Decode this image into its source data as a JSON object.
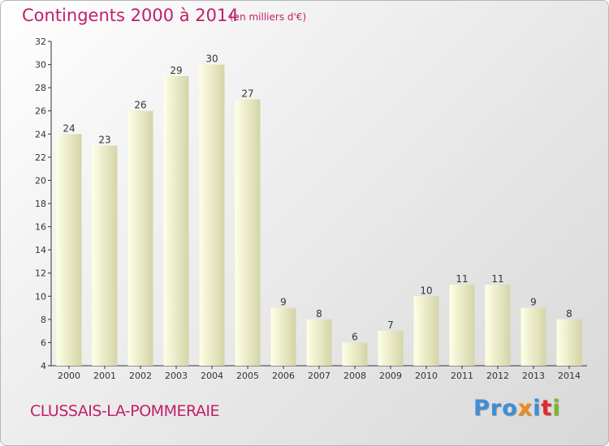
{
  "header": {
    "title": "Contingents 2000 à 2014",
    "unit": "(en milliers d'€)"
  },
  "footer": {
    "commune": "CLUSSAIS-LA-POMMERAIE",
    "logo_parts": [
      "Pro",
      "x",
      "i",
      "t",
      "i"
    ]
  },
  "colors": {
    "title": "#c0206a",
    "bar_light": "#ffffe6",
    "bar_dark": "#d9d9b0",
    "axis": "#333333",
    "grid": "#c8c8c8"
  },
  "chart_data": {
    "type": "bar",
    "categories": [
      "2000",
      "2001",
      "2002",
      "2003",
      "2004",
      "2005",
      "2006",
      "2007",
      "2008",
      "2009",
      "2010",
      "2011",
      "2012",
      "2013",
      "2014"
    ],
    "values": [
      24,
      23,
      26,
      29,
      30,
      27,
      9,
      8,
      6,
      7,
      10,
      11,
      11,
      9,
      8
    ],
    "title": "Contingents 2000 à 2014",
    "ylabel": "(en milliers d'€)",
    "xlabel": "",
    "ylim": [
      4,
      32
    ],
    "yticks": [
      4,
      6,
      8,
      10,
      12,
      14,
      16,
      18,
      20,
      22,
      24,
      26,
      28,
      30,
      32
    ],
    "grid": false,
    "data_labels": true
  }
}
